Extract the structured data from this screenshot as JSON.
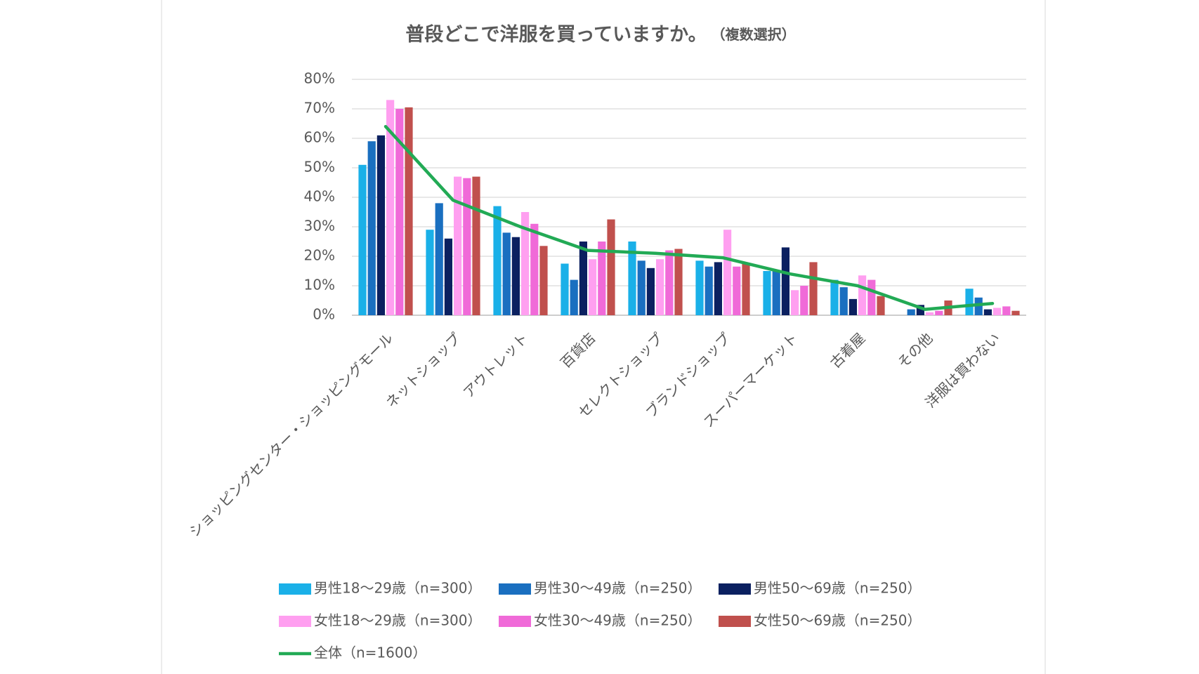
{
  "chart_data": {
    "type": "bar",
    "title": "普段どこで洋服を買っていますか。",
    "subtitle": "（複数選択）",
    "categories": [
      "ショッピングセンター・ショッピングモール",
      "ネットショップ",
      "アウトレット",
      "百貨店",
      "セレクトショップ",
      "ブランドショップ",
      "スーパーマーケット",
      "古着屋",
      "その他",
      "洋服は買わない"
    ],
    "series": [
      {
        "name": "男性18～29歳（n=300）",
        "color": "#1ab0e8",
        "values": [
          51,
          29,
          37,
          17.5,
          25,
          18.5,
          15,
          12,
          0,
          9
        ]
      },
      {
        "name": "男性30～49歳（n=250）",
        "color": "#1a6fc0",
        "values": [
          59,
          38,
          28,
          12,
          18.5,
          16.5,
          15,
          9.5,
          2,
          6
        ]
      },
      {
        "name": "男性50～69歳（n=250）",
        "color": "#0b2060",
        "values": [
          61,
          26,
          26.5,
          25,
          16,
          18,
          23,
          5.5,
          3.5,
          2
        ]
      },
      {
        "name": "女性18～29歳（n=300）",
        "color": "#ff9ff0",
        "values": [
          73,
          47,
          35,
          19,
          19,
          29,
          8.5,
          13.5,
          1,
          2.5
        ]
      },
      {
        "name": "女性30～49歳（n=250）",
        "color": "#f06ad8",
        "values": [
          70,
          46.5,
          31,
          25,
          22,
          16.5,
          10,
          12,
          1.5,
          3
        ]
      },
      {
        "name": "女性50～69歳（n=250）",
        "color": "#c0504d",
        "values": [
          70.5,
          47,
          23.5,
          32.5,
          22.5,
          17.5,
          18,
          6.5,
          5,
          1.5
        ]
      },
      {
        "name": "全体（n=1600）",
        "color": "#22aa55",
        "type": "line",
        "values": [
          64,
          39,
          30,
          22,
          21,
          19.5,
          14,
          10,
          2,
          4
        ]
      }
    ],
    "ylim": [
      0,
      80
    ],
    "yticks": [
      {
        "value": 0,
        "label": "0%"
      },
      {
        "value": 10,
        "label": "10%"
      },
      {
        "value": 20,
        "label": "20%"
      },
      {
        "value": 30,
        "label": "30%"
      },
      {
        "value": 40,
        "label": "40%"
      },
      {
        "value": 50,
        "label": "50%"
      },
      {
        "value": 60,
        "label": "60%"
      },
      {
        "value": 70,
        "label": "70%"
      },
      {
        "value": 80,
        "label": "80%"
      }
    ],
    "grid": true
  }
}
